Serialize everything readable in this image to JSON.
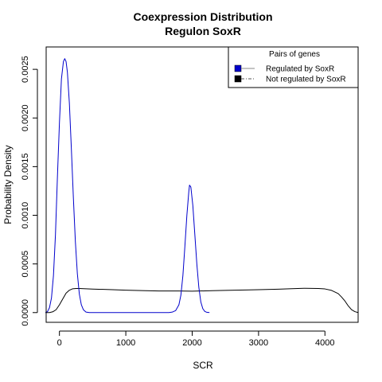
{
  "chart_data": {
    "type": "line",
    "title": "Coexpression Distribution",
    "subtitle": "Regulon SoxR",
    "xlabel": "SCR",
    "ylabel": "Probability Density",
    "xlim": [
      -200,
      4500
    ],
    "ylim": [
      -0.0001,
      0.00273
    ],
    "x_ticks": [
      "0",
      "1000",
      "2000",
      "3000",
      "4000"
    ],
    "y_ticks": [
      "0.0000",
      "0.0005",
      "0.0010",
      "0.0015",
      "0.0020",
      "0.0025"
    ],
    "legend": {
      "title": "Pairs of genes",
      "position": "top-right",
      "entries": [
        "Regulated by  SoxR",
        "Not regulated by  SoxR"
      ]
    },
    "series": [
      {
        "name": "Regulated by  SoxR",
        "color": "#0000cc",
        "x": [
          -210,
          -180,
          -150,
          -120,
          -90,
          -60,
          -30,
          0,
          30,
          60,
          80,
          100,
          120,
          150,
          180,
          210,
          240,
          270,
          300,
          330,
          360,
          400,
          450,
          500,
          1000,
          1500,
          1650,
          1700,
          1750,
          1800,
          1830,
          1860,
          1890,
          1920,
          1950,
          1960,
          1980,
          2010,
          2040,
          2070,
          2100,
          2130,
          2160,
          2190,
          2220,
          2260
        ],
        "y": [
          0.0,
          1e-05,
          5e-05,
          0.00015,
          0.00038,
          0.0008,
          0.0014,
          0.00195,
          0.0024,
          0.00258,
          0.00261,
          0.00258,
          0.00247,
          0.00215,
          0.00168,
          0.00118,
          0.00073,
          0.0004,
          0.00019,
          8e-05,
          3e-05,
          5e-06,
          0.0,
          0.0,
          0.0,
          0.0,
          0.0,
          5e-06,
          2e-05,
          8e-05,
          0.00018,
          0.00038,
          0.00068,
          0.001,
          0.00125,
          0.00131,
          0.00129,
          0.0011,
          0.0008,
          0.0005,
          0.00026,
          0.00011,
          4e-05,
          1.2e-05,
          3e-06,
          0.0
        ]
      },
      {
        "name": "Not regulated by  SoxR",
        "color": "#000000",
        "x": [
          -210,
          -150,
          -100,
          -50,
          0,
          50,
          100,
          150,
          200,
          250,
          300,
          500,
          800,
          1000,
          1300,
          1500,
          1800,
          2000,
          2300,
          2500,
          2800,
          3000,
          3300,
          3500,
          3700,
          3900,
          4000,
          4100,
          4200,
          4250,
          4300,
          4350,
          4400,
          4450,
          4500
        ],
        "y": [
          0.0,
          5e-07,
          8e-06,
          3e-05,
          8e-05,
          0.00014,
          0.0002,
          0.00023,
          0.000245,
          0.000248,
          0.000248,
          0.000242,
          0.000235,
          0.00023,
          0.000225,
          0.000222,
          0.000222,
          0.00022,
          0.000225,
          0.000228,
          0.000232,
          0.000235,
          0.00024,
          0.000246,
          0.00025,
          0.000248,
          0.000243,
          0.000228,
          0.000195,
          0.00016,
          0.00012,
          7e-05,
          3e-05,
          1e-05,
          0.0
        ]
      }
    ]
  }
}
